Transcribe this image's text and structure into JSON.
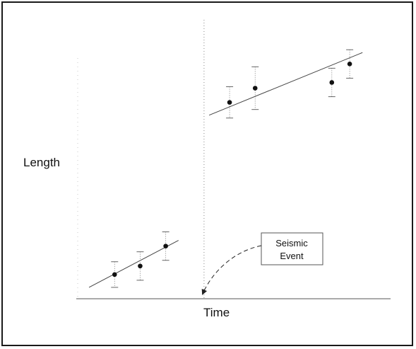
{
  "chart_data": {
    "type": "scatter",
    "xlabel": "Time",
    "ylabel": "Length",
    "annotation": [
      "Seismic",
      "Event"
    ],
    "series": [
      {
        "points": [
          {
            "x": 1,
            "y": 1.2,
            "err": 0.9
          },
          {
            "x": 2,
            "y": 1.8,
            "err": 1.0
          },
          {
            "x": 3,
            "y": 3.2,
            "err": 1.0
          }
        ],
        "fit": [
          [
            0,
            0.3
          ],
          [
            3.5,
            3.6
          ]
        ]
      },
      {
        "points": [
          {
            "x": 5.5,
            "y": 13.3,
            "err": 1.1
          },
          {
            "x": 6.5,
            "y": 14.3,
            "err": 1.5
          },
          {
            "x": 9.5,
            "y": 14.7,
            "err": 1.0
          },
          {
            "x": 10.2,
            "y": 16.0,
            "err": 1.0
          }
        ],
        "fit": [
          [
            4.7,
            12.4
          ],
          [
            10.7,
            16.8
          ]
        ]
      }
    ],
    "event_x": 4.5,
    "xlim": [
      -0.5,
      11.8
    ],
    "ylim": [
      -0.5,
      19.5
    ],
    "grid": false,
    "colors": {
      "marks": "#111111",
      "line": "#444444",
      "errorbar": "#666666"
    }
  }
}
